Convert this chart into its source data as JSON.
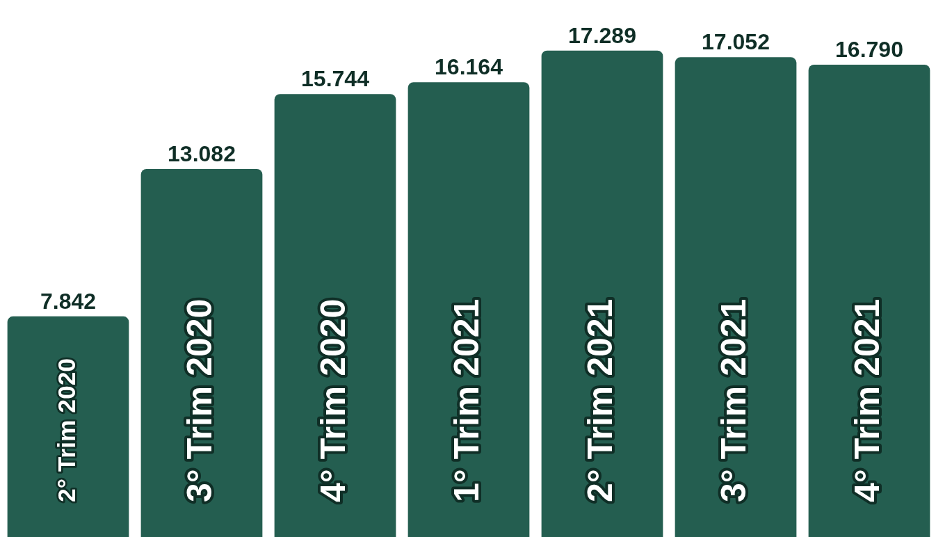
{
  "chart_data": {
    "type": "bar",
    "categories": [
      "2° Trim 2020",
      "3° Trim 2020",
      "4° Trim 2020",
      "1° Trim 2021",
      "2° Trim 2021",
      "3° Trim 2021",
      "4° Trim 2021"
    ],
    "values": [
      7842,
      13082,
      15744,
      16164,
      17289,
      17052,
      16790
    ],
    "value_labels": [
      "7.842",
      "13.082",
      "15.744",
      "16.164",
      "17.289",
      "17.052",
      "16.790"
    ],
    "color": "#245e50",
    "tick_labels": false
  }
}
